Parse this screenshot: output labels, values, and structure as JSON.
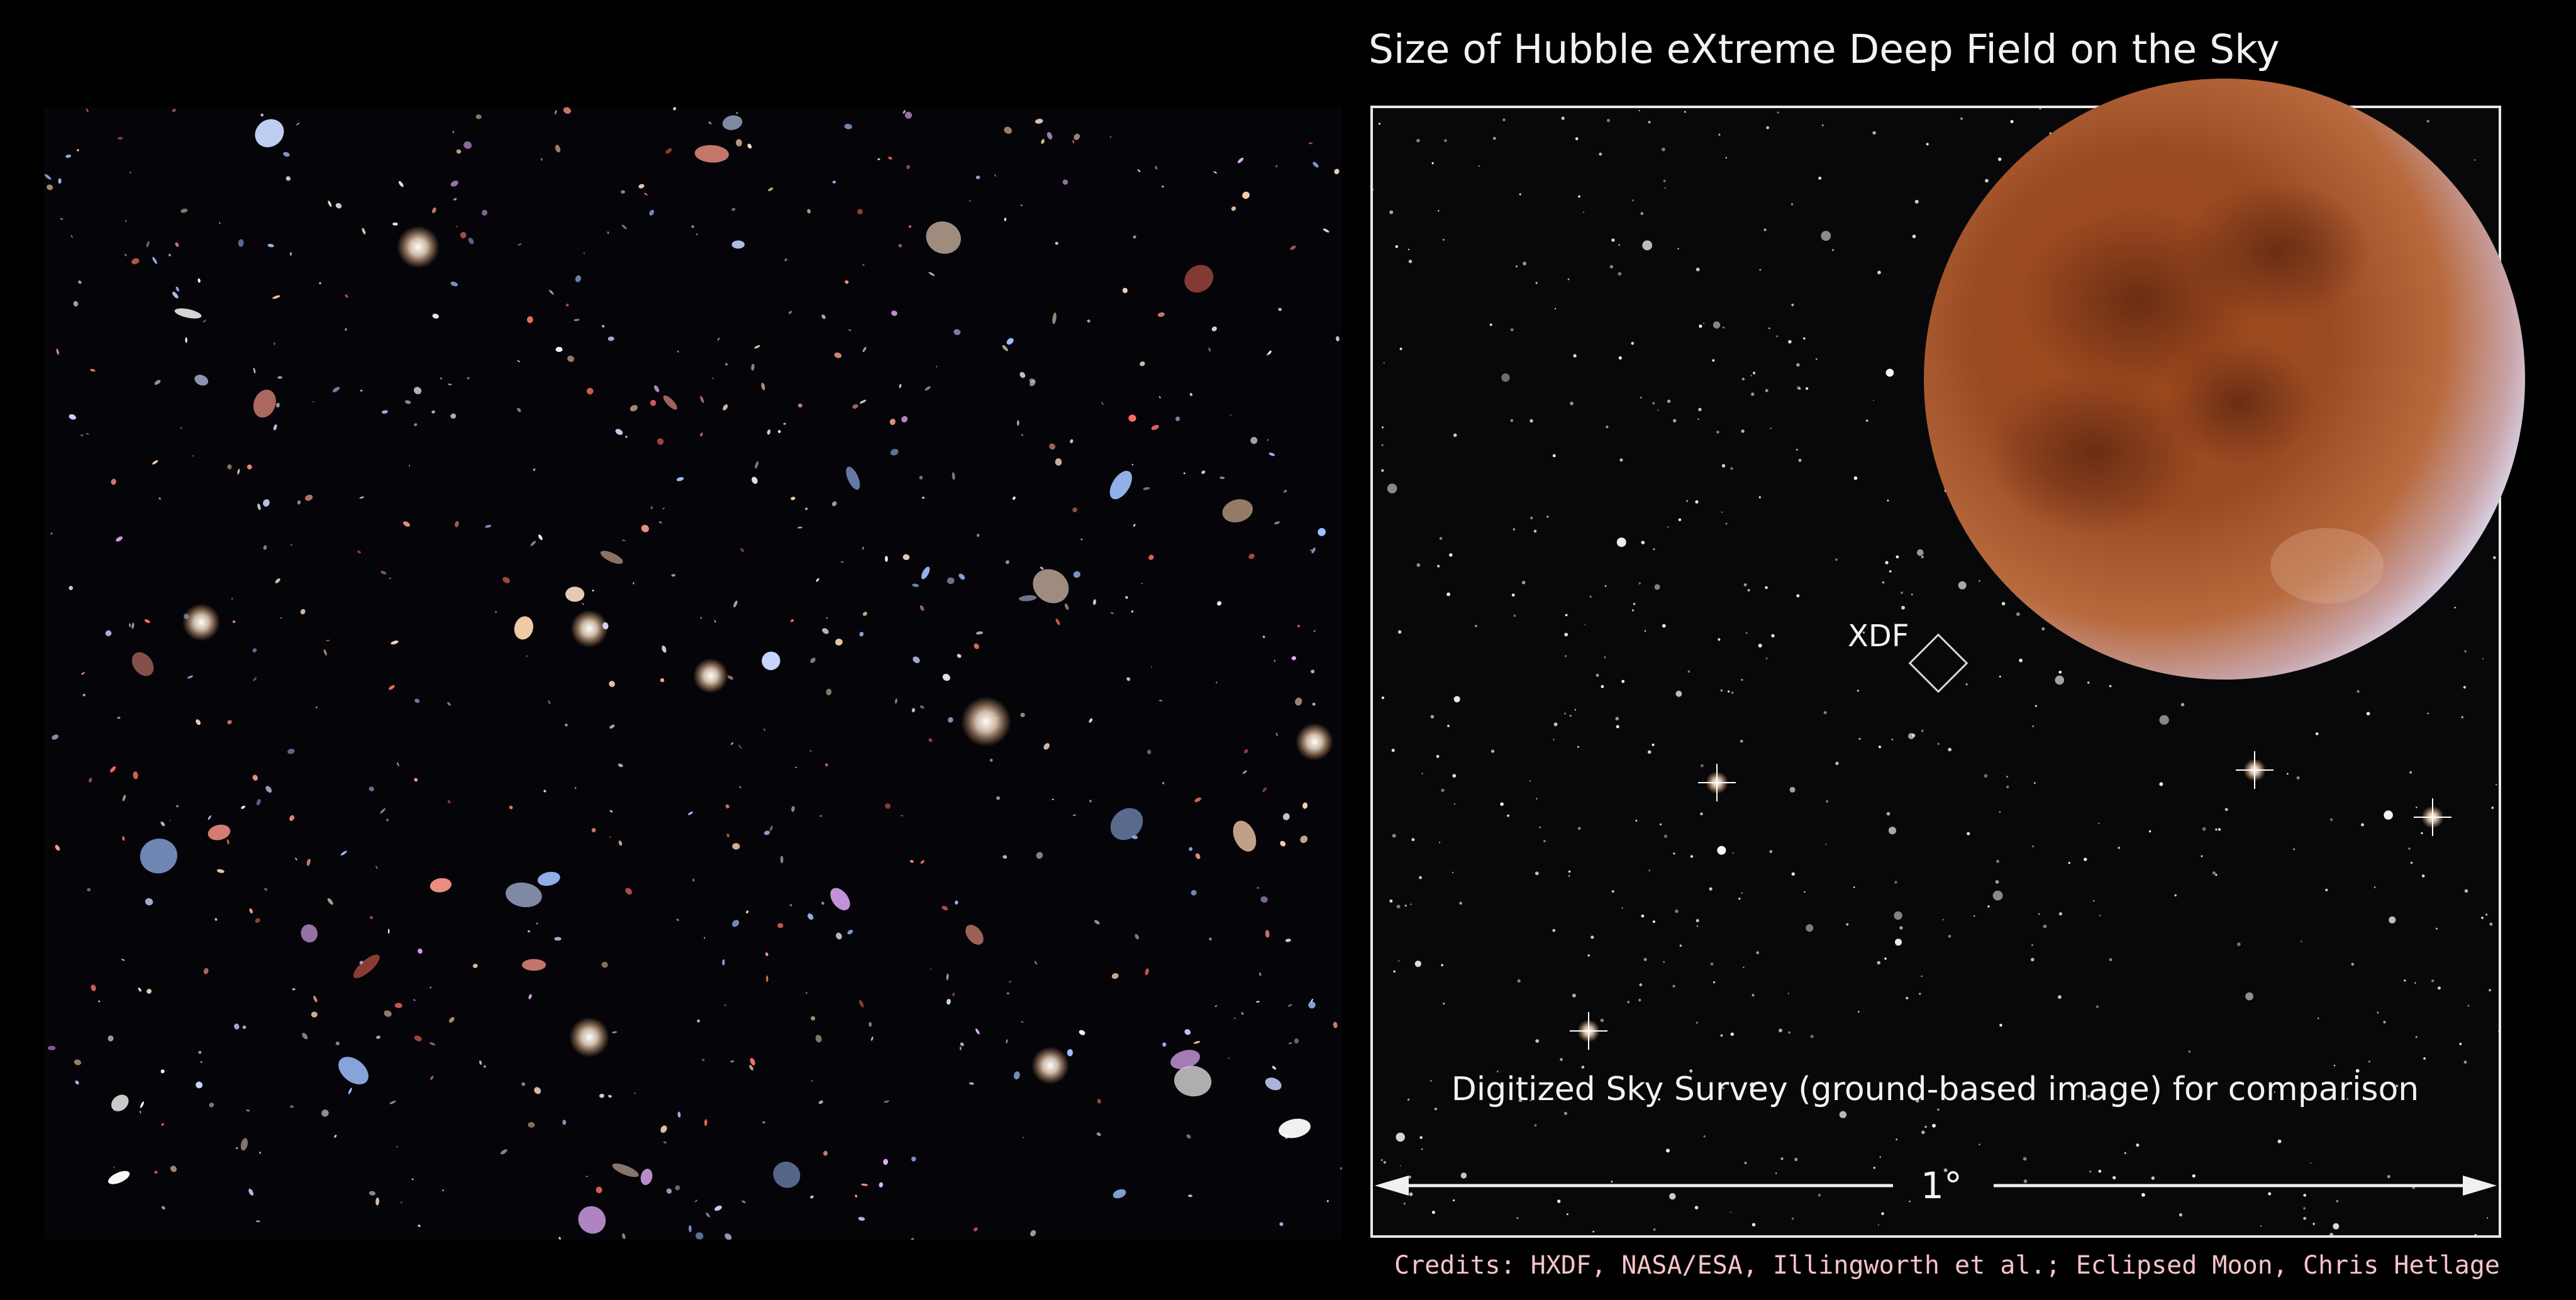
{
  "title": "Size of Hubble eXtreme Deep Field on the Sky",
  "xdf_label": "XDF",
  "comparison_caption": "Digitized Sky Survey (ground-based image) for comparison",
  "scale_label": "1°",
  "credits": "Credits: HXDF, NASA/ESA, Illingworth et al.; Eclipsed Moon, Chris Hetlage"
}
